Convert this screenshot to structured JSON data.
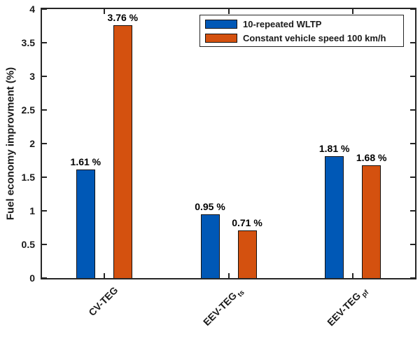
{
  "chart_data": {
    "type": "bar",
    "title": "",
    "xlabel": "",
    "ylabel": "Fuel economy improvment (%)",
    "ylim": [
      0,
      4
    ],
    "yticks": [
      0,
      0.5,
      1,
      1.5,
      2,
      2.5,
      3,
      3.5,
      4
    ],
    "ytick_labels": [
      "0",
      "0.5",
      "1",
      "1.5",
      "2",
      "2.5",
      "3",
      "3.5",
      "4"
    ],
    "grid": false,
    "categories": [
      {
        "label": "CV-TEG",
        "sub": ""
      },
      {
        "label": "EEV-TEG",
        "sub": "ts"
      },
      {
        "label": "EEV-TEG",
        "sub": "pf"
      }
    ],
    "series": [
      {
        "name": "10-repeated WLTP",
        "color": "#0058b6",
        "values": [
          1.61,
          0.95,
          1.81
        ],
        "labels": [
          "1.61 %",
          "0.95 %",
          "1.81 %"
        ]
      },
      {
        "name": "Constant vehicle speed 100 km/h",
        "color": "#d4510f",
        "values": [
          3.76,
          0.71,
          1.68
        ],
        "labels": [
          "3.76 %",
          "0.71 %",
          "1.68 %"
        ]
      }
    ],
    "legend": {
      "position": "upper-right-inside",
      "entries": [
        "10-repeated WLTP",
        "Constant vehicle speed 100 km/h"
      ]
    },
    "axis_color": "#262626",
    "bar_edge_color": "#111111",
    "background_color": "#ffffff"
  }
}
